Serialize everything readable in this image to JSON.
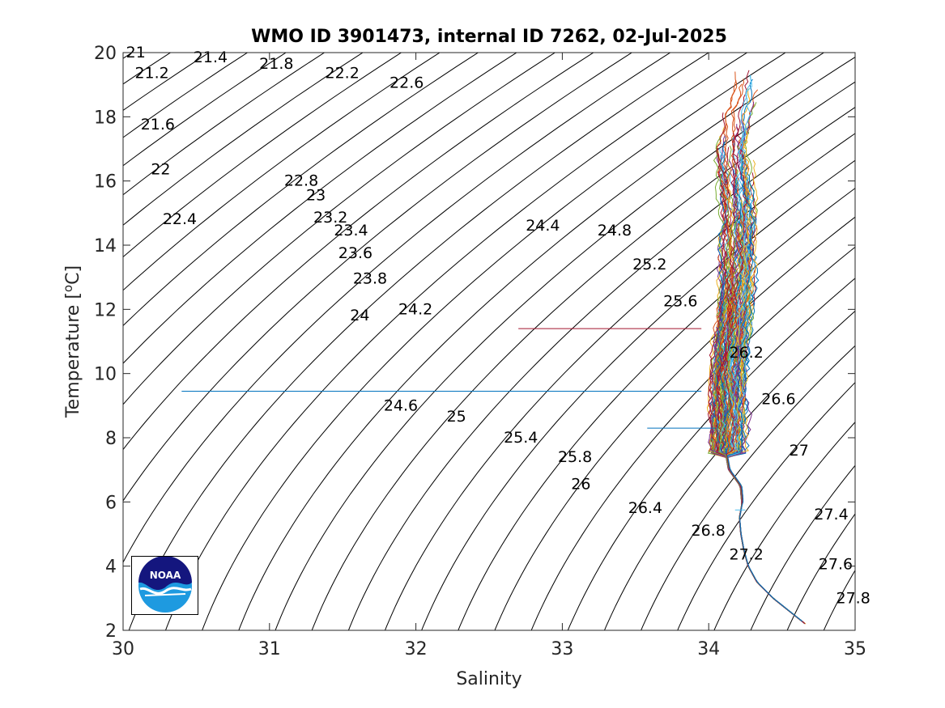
{
  "chart_data": {
    "type": "line",
    "title": "WMO ID 3901473, internal ID 7262, 02-Jul-2025",
    "xlabel": "Salinity",
    "ylabel_main": "Temperature [",
    "ylabel_sup": "o",
    "ylabel_end": "C]",
    "xlim": [
      30,
      35
    ],
    "ylim": [
      2,
      20
    ],
    "xticks": [
      "30",
      "31",
      "32",
      "33",
      "34",
      "35"
    ],
    "yticks": [
      "2",
      "4",
      "6",
      "8",
      "10",
      "12",
      "14",
      "16",
      "18",
      "20"
    ],
    "grid": false,
    "density_contours": {
      "levels_from": 20.0,
      "levels_to": 28.0,
      "level_step": 0.2,
      "labels": [
        {
          "text": "21",
          "s": 30.02,
          "t": 19.85
        },
        {
          "text": "21.2",
          "s": 30.08,
          "t": 19.2
        },
        {
          "text": "21.4",
          "s": 30.48,
          "t": 19.7
        },
        {
          "text": "21.8",
          "s": 30.93,
          "t": 19.5
        },
        {
          "text": "22.2",
          "s": 31.38,
          "t": 19.2
        },
        {
          "text": "22.6",
          "s": 31.82,
          "t": 18.9
        },
        {
          "text": "21.6",
          "s": 30.12,
          "t": 17.6
        },
        {
          "text": "22",
          "s": 30.19,
          "t": 16.2
        },
        {
          "text": "22.8",
          "s": 31.1,
          "t": 15.85
        },
        {
          "text": "23",
          "s": 31.25,
          "t": 15.4
        },
        {
          "text": "22.4",
          "s": 30.27,
          "t": 14.65
        },
        {
          "text": "23.2",
          "s": 31.3,
          "t": 14.7
        },
        {
          "text": "23.4",
          "s": 31.44,
          "t": 14.3
        },
        {
          "text": "24.4",
          "s": 32.75,
          "t": 14.45
        },
        {
          "text": "24.8",
          "s": 33.24,
          "t": 14.3
        },
        {
          "text": "23.6",
          "s": 31.47,
          "t": 13.6
        },
        {
          "text": "25.2",
          "s": 33.48,
          "t": 13.25
        },
        {
          "text": "23.8",
          "s": 31.57,
          "t": 12.8
        },
        {
          "text": "25.6",
          "s": 33.69,
          "t": 12.1
        },
        {
          "text": "24.2",
          "s": 31.88,
          "t": 11.85
        },
        {
          "text": "24",
          "s": 31.55,
          "t": 11.65
        },
        {
          "text": "26.2",
          "s": 34.14,
          "t": 10.5
        },
        {
          "text": "26.6",
          "s": 34.36,
          "t": 9.05
        },
        {
          "text": "24.6",
          "s": 31.78,
          "t": 8.85
        },
        {
          "text": "25",
          "s": 32.21,
          "t": 8.5
        },
        {
          "text": "25.4",
          "s": 32.6,
          "t": 7.85
        },
        {
          "text": "27",
          "s": 34.55,
          "t": 7.45
        },
        {
          "text": "25.8",
          "s": 32.97,
          "t": 7.25
        },
        {
          "text": "26",
          "s": 33.06,
          "t": 6.4
        },
        {
          "text": "27.4",
          "s": 34.72,
          "t": 5.45
        },
        {
          "text": "26.4",
          "s": 33.45,
          "t": 5.65
        },
        {
          "text": "26.8",
          "s": 33.88,
          "t": 4.95
        },
        {
          "text": "27.2",
          "s": 34.14,
          "t": 4.2
        },
        {
          "text": "27.6",
          "s": 34.75,
          "t": 3.9
        },
        {
          "text": "27.8",
          "s": 34.87,
          "t": 2.85
        }
      ]
    },
    "profiles": {
      "count": 120,
      "colors": [
        "#0072BD",
        "#D95319",
        "#EDB120",
        "#7E2F8E",
        "#77AC30",
        "#4DBEEE",
        "#A2142F"
      ],
      "mean_profile": [
        {
          "t": 2.2,
          "s": 34.66
        },
        {
          "t": 2.6,
          "s": 34.55
        },
        {
          "t": 3.0,
          "s": 34.44
        },
        {
          "t": 3.5,
          "s": 34.33
        },
        {
          "t": 4.0,
          "s": 34.27
        },
        {
          "t": 4.5,
          "s": 34.24
        },
        {
          "t": 5.0,
          "s": 34.22
        },
        {
          "t": 5.5,
          "s": 34.21
        },
        {
          "t": 6.0,
          "s": 34.23
        },
        {
          "t": 6.5,
          "s": 34.22
        },
        {
          "t": 7.0,
          "s": 34.14
        },
        {
          "t": 7.5,
          "s": 34.12
        },
        {
          "t": 8.0,
          "s": 34.13
        },
        {
          "t": 9.0,
          "s": 34.13
        },
        {
          "t": 10.0,
          "s": 34.13
        },
        {
          "t": 11.0,
          "s": 34.15
        },
        {
          "t": 12.0,
          "s": 34.18
        },
        {
          "t": 13.0,
          "s": 34.2
        },
        {
          "t": 14.0,
          "s": 34.21
        },
        {
          "t": 15.0,
          "s": 34.21
        },
        {
          "t": 16.0,
          "s": 34.19
        },
        {
          "t": 17.0,
          "s": 34.17
        },
        {
          "t": 18.0,
          "s": 34.19
        },
        {
          "t": 19.0,
          "s": 34.23
        }
      ],
      "outliers": [
        {
          "t": 11.4,
          "s_from": 32.7,
          "s_to": 33.95,
          "color": "#A2142F"
        },
        {
          "t": 9.45,
          "s_from": 30.4,
          "s_to": 33.95,
          "color": "#0072BD"
        },
        {
          "t": 8.3,
          "s_from": 33.58,
          "s_to": 34.05,
          "color": "#0072BD"
        },
        {
          "t": 5.75,
          "s_from": 34.18,
          "s_to": 34.25,
          "color": "#4DBEEE"
        }
      ]
    }
  },
  "logo": {
    "text": "NOAA"
  }
}
